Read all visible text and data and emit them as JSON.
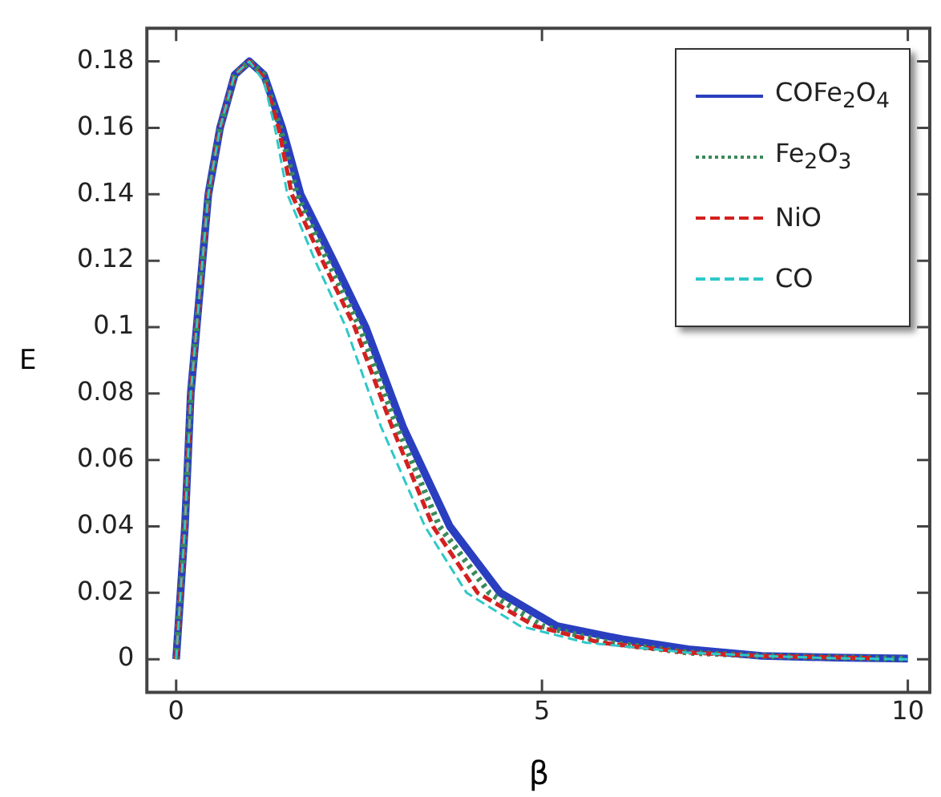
{
  "chart_data": {
    "type": "line",
    "xlabel": "β",
    "ylabel": "E",
    "xlim": [
      -0.4,
      10.3
    ],
    "ylim": [
      -0.01,
      0.19
    ],
    "xticks": [
      0,
      5,
      10
    ],
    "yticks": [
      0,
      0.02,
      0.04,
      0.06,
      0.08,
      0.1,
      0.12,
      0.14,
      0.16,
      0.18
    ],
    "grid": false,
    "legend": "top right",
    "marker": "none",
    "series": [
      {
        "name": "COFe$_{2}$O$_{4}$",
        "color": "#2a3fbf",
        "line_style": "solid",
        "x": [
          0,
          0.06,
          0.12,
          0.2,
          0.28,
          0.44,
          0.6,
          0.8,
          1.0,
          1.2,
          1.45,
          1.7,
          2.15,
          2.59,
          3.1,
          3.74,
          4.43,
          5.2,
          6.1,
          7,
          8,
          9,
          10
        ],
        "values": [
          0,
          0.02,
          0.04,
          0.08,
          0.1,
          0.14,
          0.16,
          0.176,
          0.18,
          0.176,
          0.16,
          0.14,
          0.12,
          0.1,
          0.07,
          0.04,
          0.02,
          0.01,
          0.006,
          0.003,
          0.001,
          0.0005,
          0.0002
        ]
      },
      {
        "name": "Fe$_{2}$O$_{3}$",
        "color": "#3a8a5a",
        "line_style": "dotted",
        "x": [
          0,
          0.06,
          0.12,
          0.2,
          0.28,
          0.44,
          0.6,
          0.8,
          1.0,
          1.2,
          1.42,
          1.65,
          2.07,
          2.51,
          3.02,
          3.6,
          4.28,
          5.0,
          5.9,
          7,
          8,
          10
        ],
        "values": [
          0,
          0.02,
          0.04,
          0.08,
          0.1,
          0.14,
          0.16,
          0.176,
          0.18,
          0.176,
          0.16,
          0.14,
          0.12,
          0.1,
          0.07,
          0.04,
          0.02,
          0.01,
          0.005,
          0.002,
          0.001,
          0.0001
        ]
      },
      {
        "name": "NiO",
        "color": "#d42020",
        "line_style": "dashed",
        "x": [
          0,
          0.06,
          0.12,
          0.2,
          0.28,
          0.44,
          0.6,
          0.8,
          1.0,
          1.2,
          1.4,
          1.58,
          2.0,
          2.44,
          2.95,
          3.51,
          4.12,
          4.9,
          5.8,
          7,
          8,
          9.5
        ],
        "values": [
          0,
          0.02,
          0.04,
          0.08,
          0.1,
          0.14,
          0.16,
          0.176,
          0.18,
          0.175,
          0.16,
          0.14,
          0.12,
          0.1,
          0.07,
          0.04,
          0.02,
          0.01,
          0.005,
          0.002,
          0.001,
          0.0003
        ]
      },
      {
        "name": "CO",
        "color": "#2ec8c8",
        "line_style": "dashed",
        "x": [
          0,
          0.06,
          0.12,
          0.2,
          0.28,
          0.44,
          0.6,
          0.8,
          1.0,
          1.2,
          1.35,
          1.52,
          1.9,
          2.32,
          2.8,
          3.4,
          3.97,
          4.7,
          5.6,
          7,
          8,
          9,
          10
        ],
        "values": [
          0,
          0.02,
          0.04,
          0.08,
          0.1,
          0.14,
          0.16,
          0.176,
          0.18,
          0.174,
          0.16,
          0.14,
          0.12,
          0.1,
          0.07,
          0.04,
          0.02,
          0.01,
          0.005,
          0.002,
          0.001,
          0.0003,
          0
        ]
      }
    ]
  }
}
